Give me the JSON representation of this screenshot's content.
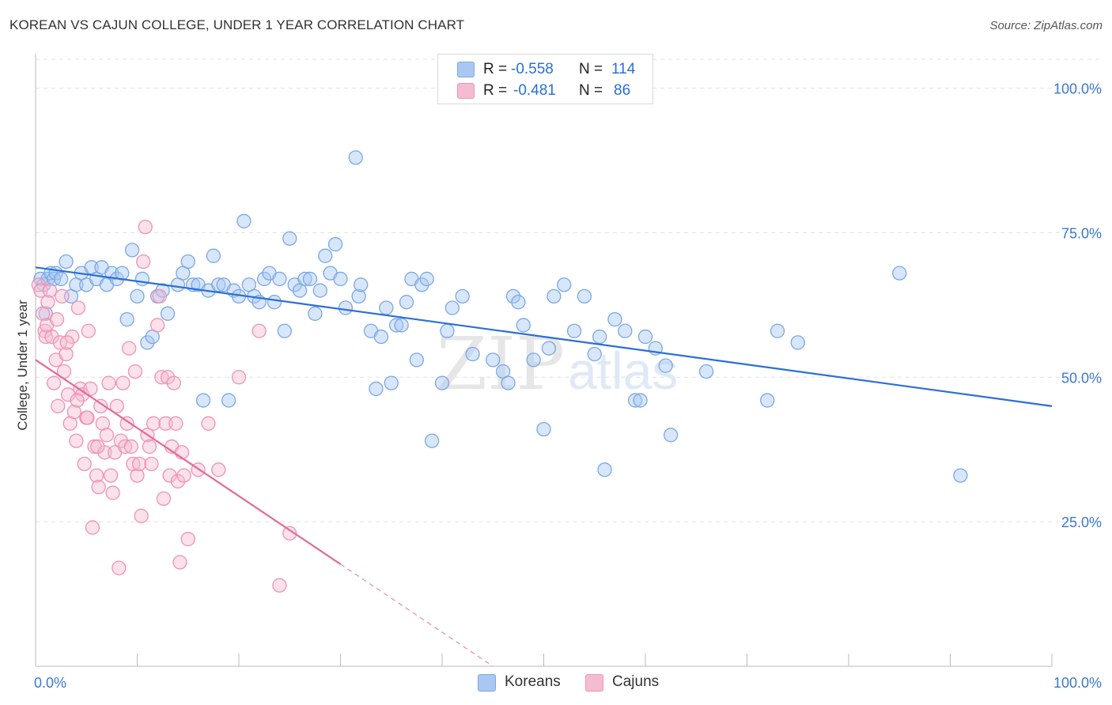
{
  "header": {
    "title": "KOREAN VS CAJUN COLLEGE, UNDER 1 YEAR CORRELATION CHART",
    "source": "Source: ZipAtlas.com"
  },
  "watermark": {
    "zip": "ZIP",
    "atlas": "atlas"
  },
  "legend": {
    "rows": [
      {
        "r_label": "R = ",
        "r_value": "-0.558",
        "n_label": "N = ",
        "n_value": "114"
      },
      {
        "r_label": "R = ",
        "r_value": "-0.481",
        "n_label": "N = ",
        "n_value": "86"
      }
    ]
  },
  "colors": {
    "blue_fill": "#a9c8f1",
    "blue_stroke": "#7aa8e6",
    "blue_line": "#2a6fd6",
    "pink_fill": "#f4bcd0",
    "pink_stroke": "#ee93b2",
    "pink_line": "#e36a98",
    "grid": "#e0e0e0",
    "tick_text": "#3b78d4"
  },
  "chart_data": {
    "type": "scatter",
    "title": "KOREAN VS CAJUN COLLEGE, UNDER 1 YEAR CORRELATION CHART",
    "xlabel": "",
    "ylabel": "College, Under 1 year",
    "xlim": [
      0,
      100
    ],
    "ylim": [
      0,
      105
    ],
    "x_tick_labels": [
      "0.0%",
      "100.0%"
    ],
    "y_ticks": [
      25,
      50,
      75,
      100
    ],
    "y_tick_labels": [
      "25.0%",
      "50.0%",
      "75.0%",
      "100.0%"
    ],
    "legend_position": "bottom-center",
    "series": [
      {
        "name": "Koreans",
        "r": -0.558,
        "n": 114,
        "trend": {
          "x0": 0,
          "y0": 69,
          "x1": 100,
          "y1": 45,
          "dash_from_x": null
        },
        "points": [
          [
            0.5,
            67
          ],
          [
            0.8,
            66
          ],
          [
            1,
            61
          ],
          [
            1.2,
            67
          ],
          [
            1.5,
            68
          ],
          [
            1.8,
            67
          ],
          [
            2,
            68
          ],
          [
            2.5,
            67
          ],
          [
            3,
            70
          ],
          [
            3.5,
            64
          ],
          [
            4,
            66
          ],
          [
            4.5,
            68
          ],
          [
            5,
            66
          ],
          [
            5.5,
            69
          ],
          [
            6,
            67
          ],
          [
            6.5,
            69
          ],
          [
            7,
            66
          ],
          [
            7.5,
            68
          ],
          [
            8,
            67
          ],
          [
            8.5,
            68
          ],
          [
            9,
            60
          ],
          [
            9.5,
            72
          ],
          [
            10,
            64
          ],
          [
            10.5,
            67
          ],
          [
            11,
            56
          ],
          [
            11.5,
            57
          ],
          [
            12,
            64
          ],
          [
            12.5,
            65
          ],
          [
            13,
            61
          ],
          [
            14,
            66
          ],
          [
            14.5,
            68
          ],
          [
            15,
            70
          ],
          [
            15.5,
            66
          ],
          [
            16,
            66
          ],
          [
            16.5,
            46
          ],
          [
            17,
            65
          ],
          [
            17.5,
            71
          ],
          [
            18,
            66
          ],
          [
            18.5,
            66
          ],
          [
            19,
            46
          ],
          [
            19.5,
            65
          ],
          [
            20,
            64
          ],
          [
            20.5,
            77
          ],
          [
            21,
            66
          ],
          [
            21.5,
            64
          ],
          [
            22,
            63
          ],
          [
            22.5,
            67
          ],
          [
            23,
            68
          ],
          [
            23.5,
            63
          ],
          [
            24,
            67
          ],
          [
            24.5,
            58
          ],
          [
            25,
            74
          ],
          [
            25.5,
            66
          ],
          [
            26,
            65
          ],
          [
            26.5,
            67
          ],
          [
            27,
            67
          ],
          [
            27.5,
            61
          ],
          [
            28,
            65
          ],
          [
            28.5,
            71
          ],
          [
            29,
            68
          ],
          [
            29.5,
            73
          ],
          [
            30,
            67
          ],
          [
            30.5,
            62
          ],
          [
            31.5,
            88
          ],
          [
            31.8,
            64
          ],
          [
            32,
            66
          ],
          [
            33,
            58
          ],
          [
            33.5,
            48
          ],
          [
            34,
            57
          ],
          [
            34.5,
            62
          ],
          [
            35,
            49
          ],
          [
            35.5,
            59
          ],
          [
            36,
            59
          ],
          [
            36.5,
            63
          ],
          [
            37,
            67
          ],
          [
            37.5,
            53
          ],
          [
            38,
            66
          ],
          [
            38.5,
            67
          ],
          [
            39,
            39
          ],
          [
            40,
            49
          ],
          [
            40.5,
            58
          ],
          [
            41,
            62
          ],
          [
            42,
            64
          ],
          [
            43,
            54
          ],
          [
            45,
            53
          ],
          [
            46,
            51
          ],
          [
            46.5,
            49
          ],
          [
            47,
            64
          ],
          [
            47.5,
            63
          ],
          [
            48,
            59
          ],
          [
            49,
            53
          ],
          [
            50,
            41
          ],
          [
            50.5,
            55
          ],
          [
            51,
            64
          ],
          [
            52,
            66
          ],
          [
            53,
            58
          ],
          [
            54,
            64
          ],
          [
            55,
            54
          ],
          [
            55.5,
            57
          ],
          [
            56,
            34
          ],
          [
            57,
            60
          ],
          [
            58,
            58
          ],
          [
            59,
            46
          ],
          [
            59.5,
            46
          ],
          [
            60,
            57
          ],
          [
            61,
            55
          ],
          [
            62,
            52
          ],
          [
            62.5,
            40
          ],
          [
            66,
            51
          ],
          [
            72,
            46
          ],
          [
            73,
            58
          ],
          [
            75,
            56
          ],
          [
            85,
            68
          ],
          [
            91,
            33
          ]
        ]
      },
      {
        "name": "Cajuns",
        "r": -0.481,
        "n": 86,
        "trend": {
          "x0": 0,
          "y0": 53,
          "x1": 45,
          "y1": 0,
          "dash_from_x": 30
        },
        "points": [
          [
            0.3,
            66
          ],
          [
            0.5,
            65
          ],
          [
            0.7,
            61
          ],
          [
            0.9,
            58
          ],
          [
            1,
            57
          ],
          [
            1.2,
            63
          ],
          [
            1.4,
            65
          ],
          [
            1.6,
            57
          ],
          [
            1.8,
            49
          ],
          [
            2,
            53
          ],
          [
            2.2,
            45
          ],
          [
            2.4,
            56
          ],
          [
            2.6,
            64
          ],
          [
            2.8,
            51
          ],
          [
            3,
            54
          ],
          [
            3.2,
            47
          ],
          [
            3.4,
            42
          ],
          [
            3.6,
            57
          ],
          [
            3.8,
            44
          ],
          [
            4,
            39
          ],
          [
            4.2,
            62
          ],
          [
            4.4,
            48
          ],
          [
            4.6,
            47
          ],
          [
            4.8,
            35
          ],
          [
            5,
            43
          ],
          [
            5.2,
            58
          ],
          [
            5.4,
            48
          ],
          [
            5.6,
            24
          ],
          [
            5.8,
            38
          ],
          [
            6,
            33
          ],
          [
            6.2,
            31
          ],
          [
            6.4,
            45
          ],
          [
            6.6,
            42
          ],
          [
            6.8,
            37
          ],
          [
            7,
            40
          ],
          [
            7.2,
            49
          ],
          [
            7.4,
            33
          ],
          [
            7.6,
            30
          ],
          [
            7.8,
            37
          ],
          [
            8,
            45
          ],
          [
            8.2,
            17
          ],
          [
            8.4,
            39
          ],
          [
            8.6,
            49
          ],
          [
            8.8,
            38
          ],
          [
            9,
            42
          ],
          [
            9.2,
            55
          ],
          [
            9.4,
            38
          ],
          [
            9.6,
            35
          ],
          [
            9.8,
            51
          ],
          [
            10,
            33
          ],
          [
            10.2,
            35
          ],
          [
            10.4,
            26
          ],
          [
            10.6,
            70
          ],
          [
            10.8,
            76
          ],
          [
            11,
            40
          ],
          [
            11.2,
            38
          ],
          [
            11.4,
            35
          ],
          [
            11.6,
            42
          ],
          [
            12,
            59
          ],
          [
            12.2,
            64
          ],
          [
            12.4,
            50
          ],
          [
            12.6,
            29
          ],
          [
            12.8,
            42
          ],
          [
            13,
            50
          ],
          [
            13.2,
            33
          ],
          [
            13.4,
            38
          ],
          [
            13.6,
            49
          ],
          [
            13.8,
            42
          ],
          [
            14,
            32
          ],
          [
            14.2,
            18
          ],
          [
            14.4,
            37
          ],
          [
            14.6,
            33
          ],
          [
            15,
            22
          ],
          [
            16,
            34
          ],
          [
            17,
            42
          ],
          [
            18,
            34
          ],
          [
            20,
            50
          ],
          [
            22,
            58
          ],
          [
            24,
            14
          ],
          [
            25,
            23
          ],
          [
            1.1,
            59
          ],
          [
            2.1,
            60
          ],
          [
            3.1,
            56
          ],
          [
            4.1,
            46
          ],
          [
            5.1,
            43
          ],
          [
            6.1,
            38
          ]
        ]
      }
    ]
  }
}
